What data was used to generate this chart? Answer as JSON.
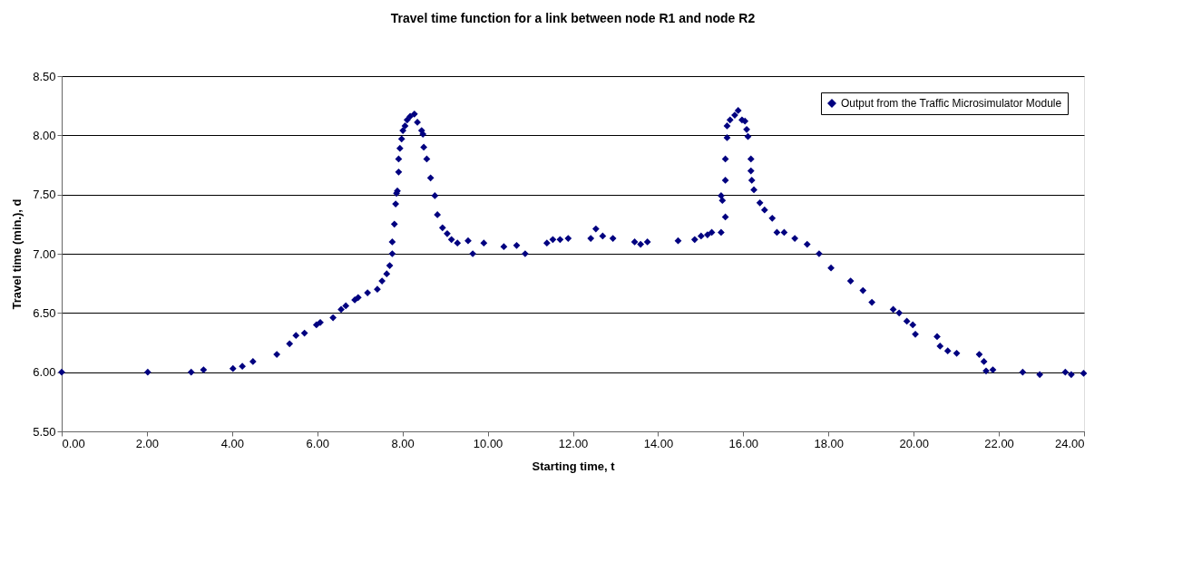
{
  "chart_data": {
    "type": "scatter",
    "title": "Travel time function for a link between node R1 and node R2",
    "xlabel": "Starting time, t",
    "ylabel": "Travel time (min.), d",
    "xlim": [
      0,
      24
    ],
    "ylim": [
      5.5,
      8.5
    ],
    "xticks": [
      {
        "value": 0,
        "label": "0.00"
      },
      {
        "value": 2,
        "label": "2.00"
      },
      {
        "value": 4,
        "label": "4.00"
      },
      {
        "value": 6,
        "label": "6.00"
      },
      {
        "value": 8,
        "label": "8.00"
      },
      {
        "value": 10,
        "label": "10.00"
      },
      {
        "value": 12,
        "label": "12.00"
      },
      {
        "value": 14,
        "label": "14.00"
      },
      {
        "value": 16,
        "label": "16.00"
      },
      {
        "value": 18,
        "label": "18.00"
      },
      {
        "value": 20,
        "label": "20.00"
      },
      {
        "value": 22,
        "label": "22.00"
      },
      {
        "value": 24,
        "label": "24.00"
      }
    ],
    "yticks": [
      {
        "value": 5.5,
        "label": "5.50"
      },
      {
        "value": 6,
        "label": "6.00"
      },
      {
        "value": 6.5,
        "label": "6.50"
      },
      {
        "value": 7,
        "label": "7.00"
      },
      {
        "value": 7.5,
        "label": "7.50"
      },
      {
        "value": 8,
        "label": "8.00"
      },
      {
        "value": 8.5,
        "label": "8.50"
      }
    ],
    "grid": "y",
    "legend": "top right",
    "marker": "diamond",
    "series": [
      {
        "name": "Output from the Traffic Microsimulator Module",
        "color": "#000080",
        "x": [
          0,
          2.02,
          3.04,
          3.33,
          4.02,
          4.24,
          4.49,
          5.05,
          5.35,
          5.5,
          5.7,
          5.98,
          6.07,
          6.37,
          6.56,
          6.67,
          6.88,
          6.96,
          7.18,
          7.41,
          7.52,
          7.63,
          7.7,
          7.76,
          7.76,
          7.81,
          7.84,
          7.86,
          7.88,
          7.91,
          7.91,
          7.94,
          7.98,
          8.01,
          8.06,
          8.11,
          8.18,
          8.28,
          8.35,
          8.45,
          8.48,
          8.5,
          8.57,
          8.66,
          8.76,
          8.82,
          8.94,
          9.05,
          9.15,
          9.29,
          9.54,
          9.65,
          9.91,
          10.38,
          10.68,
          10.88,
          11.39,
          11.53,
          11.7,
          11.89,
          12.42,
          12.54,
          12.7,
          12.94,
          13.45,
          13.59,
          13.75,
          14.47,
          14.86,
          15.01,
          15.16,
          15.26,
          15.48,
          15.58,
          15.51,
          15.48,
          15.58,
          15.58,
          15.62,
          15.62,
          15.69,
          15.8,
          15.88,
          15.97,
          16.04,
          16.08,
          16.11,
          16.18,
          16.18,
          16.2,
          16.25,
          16.39,
          16.5,
          16.68,
          16.79,
          16.96,
          17.21,
          17.5,
          17.78,
          18.06,
          18.52,
          18.81,
          19.02,
          19.52,
          19.66,
          19.84,
          19.98,
          20.04,
          20.55,
          20.62,
          20.8,
          21.01,
          21.54,
          21.65,
          21.7,
          21.86,
          22.56,
          22.96,
          23.56,
          23.7,
          23.99
        ],
        "values": [
          6.0,
          6.0,
          6.0,
          6.02,
          6.03,
          6.05,
          6.09,
          6.15,
          6.24,
          6.31,
          6.33,
          6.4,
          6.42,
          6.46,
          6.53,
          6.56,
          6.61,
          6.63,
          6.67,
          6.7,
          6.77,
          6.83,
          6.9,
          7.0,
          7.1,
          7.25,
          7.42,
          7.51,
          7.53,
          7.69,
          7.8,
          7.89,
          7.97,
          8.04,
          8.08,
          8.13,
          8.16,
          8.18,
          8.11,
          8.04,
          8.01,
          7.9,
          7.8,
          7.64,
          7.49,
          7.33,
          7.22,
          7.17,
          7.12,
          7.09,
          7.11,
          7.0,
          7.09,
          7.06,
          7.07,
          7.0,
          7.09,
          7.12,
          7.12,
          7.13,
          7.13,
          7.21,
          7.15,
          7.13,
          7.1,
          7.08,
          7.1,
          7.11,
          7.12,
          7.15,
          7.16,
          7.18,
          7.18,
          7.31,
          7.45,
          7.49,
          7.62,
          7.8,
          7.98,
          8.08,
          8.13,
          8.17,
          8.21,
          8.13,
          8.12,
          8.05,
          7.99,
          7.8,
          7.7,
          7.62,
          7.54,
          7.43,
          7.37,
          7.3,
          7.18,
          7.18,
          7.13,
          7.08,
          7.0,
          6.88,
          6.77,
          6.69,
          6.59,
          6.53,
          6.5,
          6.43,
          6.4,
          6.32,
          6.3,
          6.22,
          6.18,
          6.16,
          6.15,
          6.09,
          6.01,
          6.02,
          6.0,
          5.98,
          6.0,
          5.98,
          5.99
        ]
      }
    ]
  }
}
